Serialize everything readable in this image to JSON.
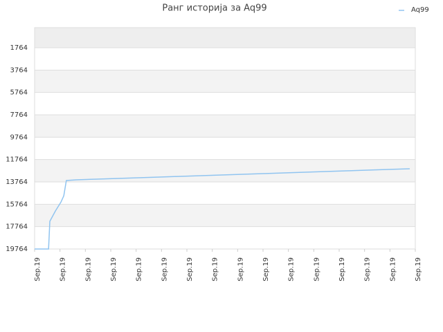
{
  "chart_data": {
    "type": "line",
    "title": "Ранг историја за Aq99",
    "x": [
      0,
      0.55,
      0.6,
      0.82,
      1.04,
      1.15,
      1.2,
      1.25,
      1.64,
      2.45,
      3.27,
      4.09,
      4.91,
      5.73,
      6.55,
      7.36,
      8.18,
      9.0,
      9.82,
      10.64,
      11.45,
      12.27,
      13.09,
      13.91,
      14.78
    ],
    "series": [
      {
        "name": "Aq99",
        "color": "#90c4f0",
        "values": [
          19764,
          19764,
          17290,
          16362,
          15558,
          15001,
          14320,
          13640,
          13578,
          13516,
          13454,
          13392,
          13330,
          13269,
          13207,
          13145,
          13083,
          13021,
          12960,
          12898,
          12836,
          12774,
          12712,
          12650,
          12588
        ]
      }
    ],
    "xlim": [
      0,
      15
    ],
    "xticks": [
      {
        "value": 0,
        "label": "Sep.19"
      },
      {
        "value": 1,
        "label": "Sep.19"
      },
      {
        "value": 2,
        "label": "Sep.19"
      },
      {
        "value": 3,
        "label": "Sep.19"
      },
      {
        "value": 4,
        "label": "Sep.19"
      },
      {
        "value": 5,
        "label": "Sep.19"
      },
      {
        "value": 6,
        "label": "Sep.19"
      },
      {
        "value": 7,
        "label": "Sep.19"
      },
      {
        "value": 8,
        "label": "Sep.19"
      },
      {
        "value": 9,
        "label": "Sep.19"
      },
      {
        "value": 10,
        "label": "Sep.19"
      },
      {
        "value": 11,
        "label": "Sep.19"
      },
      {
        "value": 12,
        "label": "Sep.19"
      },
      {
        "value": 13,
        "label": "Sep.19"
      },
      {
        "value": 14,
        "label": "Sep.19"
      },
      {
        "value": 15,
        "label": "Sep.19"
      }
    ],
    "ylim": [
      19764,
      -30
    ],
    "yticks": [
      1764,
      3764,
      5764,
      7764,
      9764,
      11764,
      13764,
      15764,
      17764,
      19764
    ],
    "grid": true,
    "legend": "top-right"
  }
}
